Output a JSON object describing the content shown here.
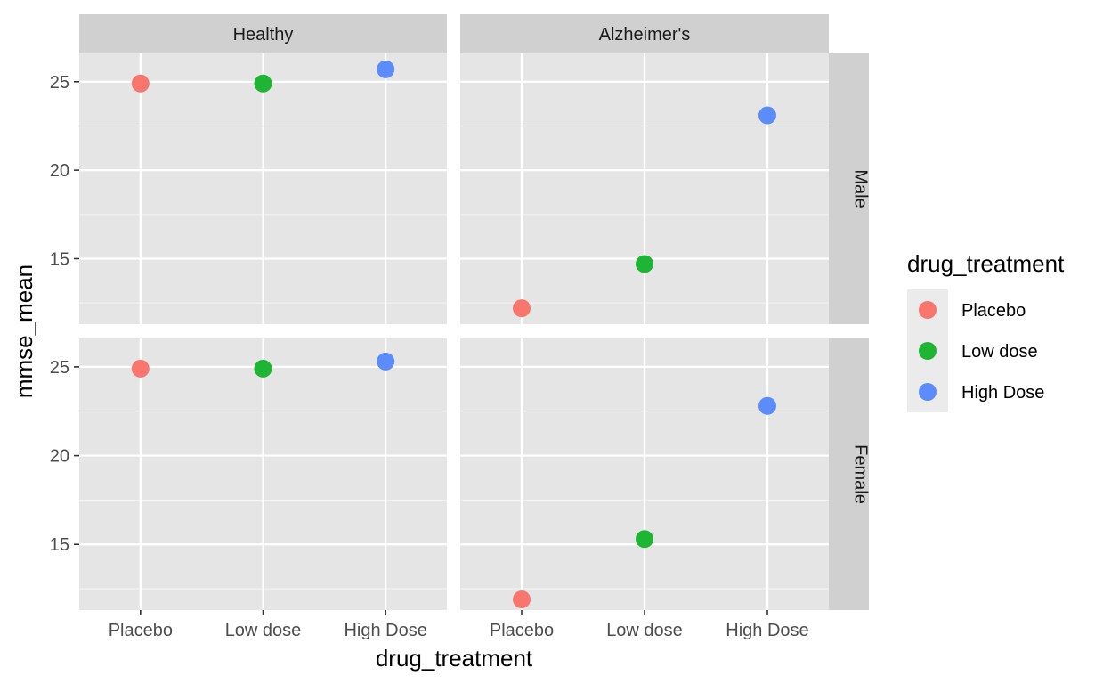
{
  "chart_data": {
    "type": "scatter",
    "xlabel": "drug_treatment",
    "ylabel": "mmse_mean",
    "categories": [
      "Placebo",
      "Low dose",
      "High Dose"
    ],
    "col_facets": [
      "Healthy",
      "Alzheimer's"
    ],
    "row_facets": [
      "Male",
      "Female"
    ],
    "ylim": [
      11.3,
      26.6
    ],
    "y_ticks": [
      15,
      20,
      25
    ],
    "grid": true,
    "legend": {
      "title": "drug_treatment",
      "position": "right",
      "entries": [
        "Placebo",
        "Low dose",
        "High Dose"
      ]
    },
    "colors": {
      "Placebo": "#F8766D",
      "Low dose": "#1FB534",
      "High Dose": "#5C8CFA"
    },
    "points": [
      {
        "row": "Male",
        "col": "Healthy",
        "x": "Placebo",
        "y": 24.9
      },
      {
        "row": "Male",
        "col": "Healthy",
        "x": "Low dose",
        "y": 24.9
      },
      {
        "row": "Male",
        "col": "Healthy",
        "x": "High Dose",
        "y": 25.7
      },
      {
        "row": "Male",
        "col": "Alzheimer's",
        "x": "Placebo",
        "y": 12.2
      },
      {
        "row": "Male",
        "col": "Alzheimer's",
        "x": "Low dose",
        "y": 14.7
      },
      {
        "row": "Male",
        "col": "Alzheimer's",
        "x": "High Dose",
        "y": 23.1
      },
      {
        "row": "Female",
        "col": "Healthy",
        "x": "Placebo",
        "y": 24.9
      },
      {
        "row": "Female",
        "col": "Healthy",
        "x": "Low dose",
        "y": 24.9
      },
      {
        "row": "Female",
        "col": "Healthy",
        "x": "High Dose",
        "y": 25.3
      },
      {
        "row": "Female",
        "col": "Alzheimer's",
        "x": "Placebo",
        "y": 11.9
      },
      {
        "row": "Female",
        "col": "Alzheimer's",
        "x": "Low dose",
        "y": 15.3
      },
      {
        "row": "Female",
        "col": "Alzheimer's",
        "x": "High Dose",
        "y": 22.8
      }
    ]
  }
}
